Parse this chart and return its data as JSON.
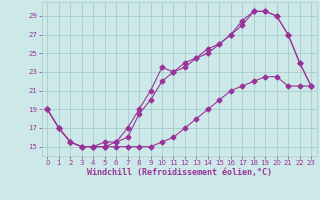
{
  "xlabel": "Windchill (Refroidissement éolien,°C)",
  "ylabel": "",
  "background_color": "#cce8e8",
  "grid_color": "#aacccc",
  "line_color": "#993399",
  "xlim": [
    -0.5,
    23.5
  ],
  "ylim": [
    14.0,
    30.5
  ],
  "xticks": [
    0,
    1,
    2,
    3,
    4,
    5,
    6,
    7,
    8,
    9,
    10,
    11,
    12,
    13,
    14,
    15,
    16,
    17,
    18,
    19,
    20,
    21,
    22,
    23
  ],
  "yticks": [
    15,
    17,
    19,
    21,
    23,
    25,
    27,
    29
  ],
  "line1_x": [
    0,
    1,
    2,
    3,
    4,
    5,
    6,
    7,
    8,
    9,
    10,
    11,
    12,
    13,
    14,
    15,
    16,
    17,
    18,
    19,
    20,
    21,
    22,
    23
  ],
  "line1_y": [
    19,
    17,
    15.5,
    15,
    15,
    15,
    15.5,
    17,
    19,
    21,
    23.5,
    23,
    24,
    24.5,
    25,
    26,
    27,
    28.5,
    29.5,
    29.5,
    29,
    27,
    24,
    21.5
  ],
  "line2_x": [
    0,
    1,
    2,
    3,
    4,
    5,
    6,
    7,
    8,
    9,
    10,
    11,
    12,
    13,
    14,
    15,
    16,
    17,
    18,
    19,
    20,
    21,
    22,
    23
  ],
  "line2_y": [
    19,
    17,
    15.5,
    15,
    15,
    15.5,
    15.5,
    16,
    18.5,
    20,
    22,
    23,
    23.5,
    24.5,
    25.5,
    26,
    27,
    28,
    29.5,
    29.5,
    29,
    27,
    24,
    21.5
  ],
  "line3_x": [
    0,
    1,
    2,
    3,
    4,
    5,
    6,
    7,
    8,
    9,
    10,
    11,
    12,
    13,
    14,
    15,
    16,
    17,
    18,
    19,
    20,
    21,
    22,
    23
  ],
  "line3_y": [
    19,
    17,
    15.5,
    15,
    15,
    15,
    15,
    15,
    15,
    15,
    15.5,
    16,
    17,
    18,
    19,
    20,
    21,
    21.5,
    22,
    22.5,
    22.5,
    21.5,
    21.5,
    21.5
  ],
  "marker_size": 2.5,
  "linewidth": 0.8,
  "tick_fontsize": 5,
  "xlabel_fontsize": 6
}
